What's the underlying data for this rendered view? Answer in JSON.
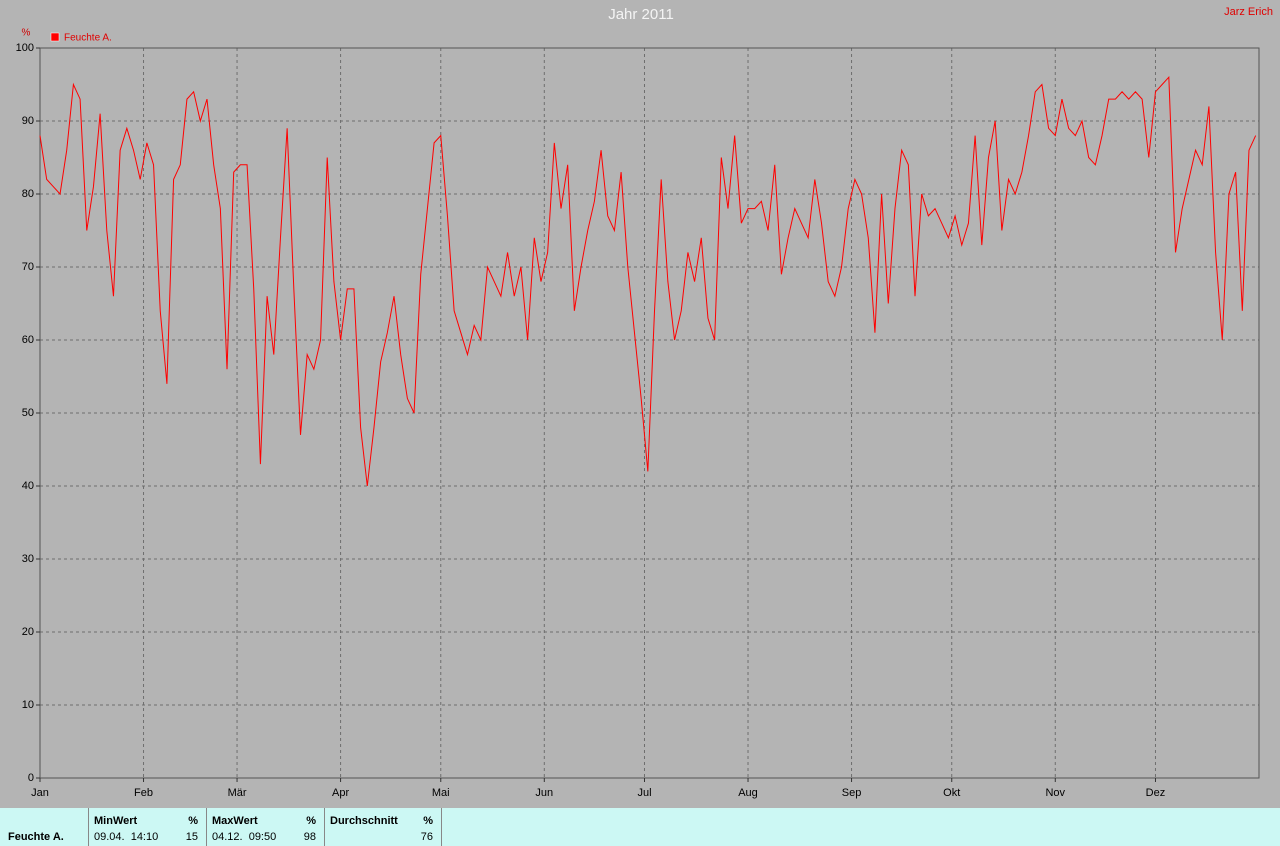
{
  "chart_data": {
    "type": "line",
    "title": "Jahr 2011",
    "author": "Jarz Erich",
    "y_label": "%",
    "x": [
      0,
      2,
      4,
      6,
      8,
      10,
      12,
      14,
      16,
      18,
      20,
      22,
      24,
      26,
      28,
      30,
      32,
      34,
      36,
      38,
      40,
      42,
      44,
      46,
      48,
      50,
      52,
      54,
      56,
      58,
      60,
      62,
      64,
      66,
      68,
      70,
      72,
      74,
      76,
      78,
      80,
      82,
      84,
      86,
      88,
      90,
      92,
      94,
      96,
      98,
      100,
      102,
      104,
      106,
      108,
      110,
      112,
      114,
      116,
      118,
      120,
      122,
      124,
      126,
      128,
      130,
      132,
      134,
      136,
      138,
      140,
      142,
      144,
      146,
      148,
      150,
      152,
      154,
      156,
      158,
      160,
      162,
      164,
      166,
      168,
      170,
      172,
      174,
      176,
      178,
      180,
      182,
      184,
      186,
      188,
      190,
      192,
      194,
      196,
      198,
      200,
      202,
      204,
      206,
      208,
      210,
      212,
      214,
      216,
      218,
      220,
      222,
      224,
      226,
      228,
      230,
      232,
      234,
      236,
      238,
      240,
      242,
      244,
      246,
      248,
      250,
      252,
      254,
      256,
      258,
      260,
      262,
      264,
      266,
      268,
      270,
      272,
      274,
      276,
      278,
      280,
      282,
      284,
      286,
      288,
      290,
      292,
      294,
      296,
      298,
      300,
      302,
      304,
      306,
      308,
      310,
      312,
      314,
      316,
      318,
      320,
      322,
      324,
      326,
      328,
      330,
      332,
      334,
      336,
      338,
      340,
      342,
      344,
      346,
      348,
      350,
      352,
      354,
      356,
      358,
      360,
      362,
      364
    ],
    "series": [
      {
        "name": "Feuchte A.",
        "color": "#ff0000",
        "values": [
          88,
          82,
          81,
          80,
          86,
          95,
          93,
          75,
          81,
          91,
          75,
          66,
          86,
          89,
          86,
          82,
          87,
          84,
          64,
          54,
          82,
          84,
          93,
          94,
          90,
          93,
          84,
          78,
          56,
          83,
          84,
          84,
          67,
          43,
          66,
          58,
          74,
          89,
          67,
          47,
          58,
          56,
          60,
          85,
          68,
          60,
          67,
          67,
          48,
          40,
          48,
          57,
          61,
          66,
          58,
          52,
          50,
          69,
          78,
          87,
          88,
          77,
          64,
          61,
          58,
          62,
          60,
          70,
          68,
          66,
          72,
          66,
          70,
          60,
          74,
          68,
          72,
          87,
          78,
          84,
          64,
          70,
          75,
          79,
          86,
          77,
          75,
          83,
          70,
          61,
          52,
          42,
          64,
          82,
          68,
          60,
          64,
          72,
          68,
          74,
          63,
          60,
          85,
          78,
          88,
          76,
          78,
          78,
          79,
          75,
          84,
          69,
          74,
          78,
          76,
          74,
          82,
          76,
          68,
          66,
          70,
          78,
          82,
          80,
          74,
          61,
          80,
          65,
          78,
          86,
          84,
          66,
          80,
          77,
          78,
          76,
          74,
          77,
          73,
          76,
          88,
          73,
          85,
          90,
          75,
          82,
          80,
          83,
          88,
          94,
          95,
          89,
          88,
          93,
          89,
          88,
          90,
          85,
          84,
          88,
          93,
          93,
          94,
          93,
          94,
          93,
          85,
          94,
          95,
          96,
          72,
          78,
          82,
          86,
          84,
          92,
          72,
          60,
          80,
          83,
          64,
          86,
          88
        ]
      }
    ],
    "xlim": [
      0,
      365
    ],
    "xticks": [
      {
        "value": 0,
        "label": "Jan"
      },
      {
        "value": 31,
        "label": "Feb"
      },
      {
        "value": 59,
        "label": "Mär"
      },
      {
        "value": 90,
        "label": "Apr"
      },
      {
        "value": 120,
        "label": "Mai"
      },
      {
        "value": 151,
        "label": "Jun"
      },
      {
        "value": 181,
        "label": "Jul"
      },
      {
        "value": 212,
        "label": "Aug"
      },
      {
        "value": 243,
        "label": "Sep"
      },
      {
        "value": 273,
        "label": "Okt"
      },
      {
        "value": 304,
        "label": "Nov"
      },
      {
        "value": 334,
        "label": "Dez"
      }
    ],
    "ylim": [
      0,
      100
    ],
    "yticks": [
      0,
      10,
      20,
      30,
      40,
      50,
      60,
      70,
      80,
      90,
      100
    ],
    "grid": true
  },
  "stats": {
    "series": "Feuchte A.",
    "columns": [
      {
        "header": "MinWert",
        "unit": "%",
        "time": "09.04.  14:10",
        "value": 15
      },
      {
        "header": "MaxWert",
        "unit": "%",
        "time": "04.12.  09:50",
        "value": 98
      },
      {
        "header": "Durchschnitt",
        "unit": "%",
        "value": 76
      }
    ]
  }
}
